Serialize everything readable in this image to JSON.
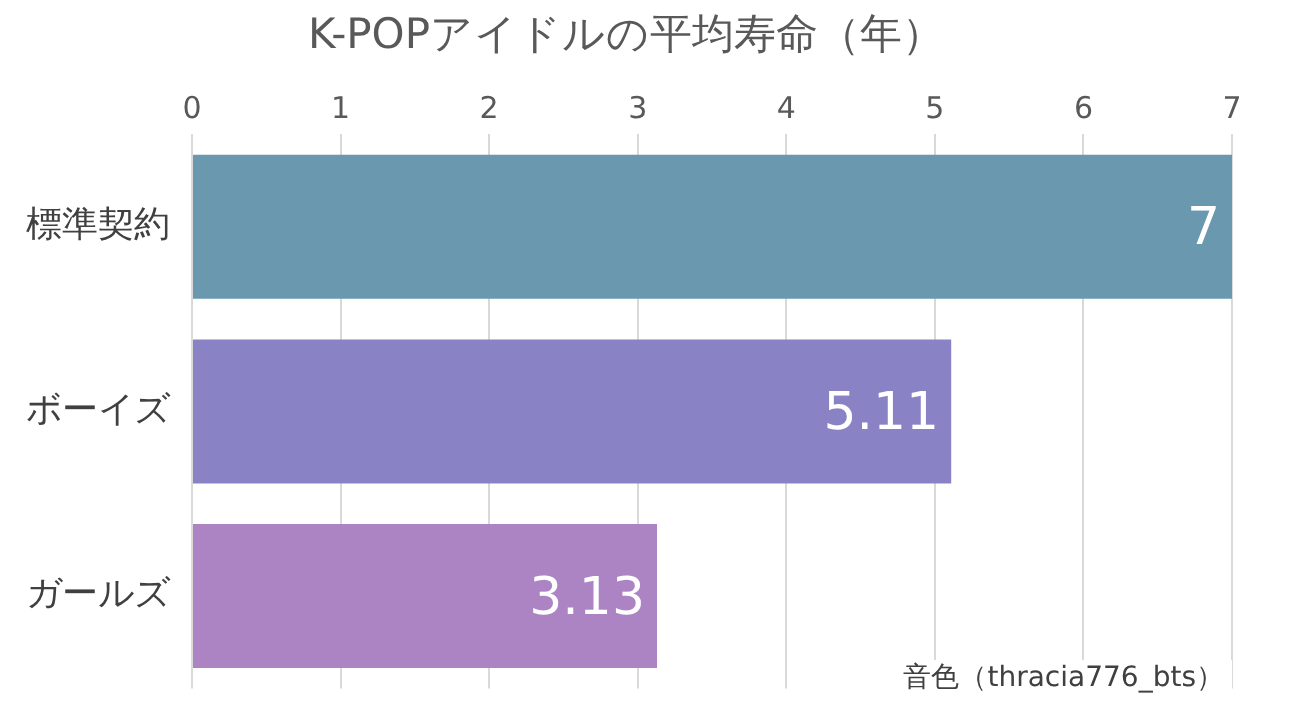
{
  "chart_data": {
    "type": "bar",
    "orientation": "horizontal",
    "title": "K-POPアイドルの平均寿命（年）",
    "categories": [
      "標準契約",
      "ボーイズ",
      "ガールズ"
    ],
    "values": [
      7,
      5.11,
      3.13
    ],
    "colors": [
      "#6a98ae",
      "#8983c6",
      "#ac84c3"
    ],
    "xlim": [
      0,
      7
    ],
    "xticks": [
      0,
      1,
      2,
      3,
      4,
      5,
      6,
      7
    ],
    "grid": "x",
    "data_labels": true,
    "legend": false,
    "annotations": [
      "音色（thracia776_bts）"
    ]
  }
}
